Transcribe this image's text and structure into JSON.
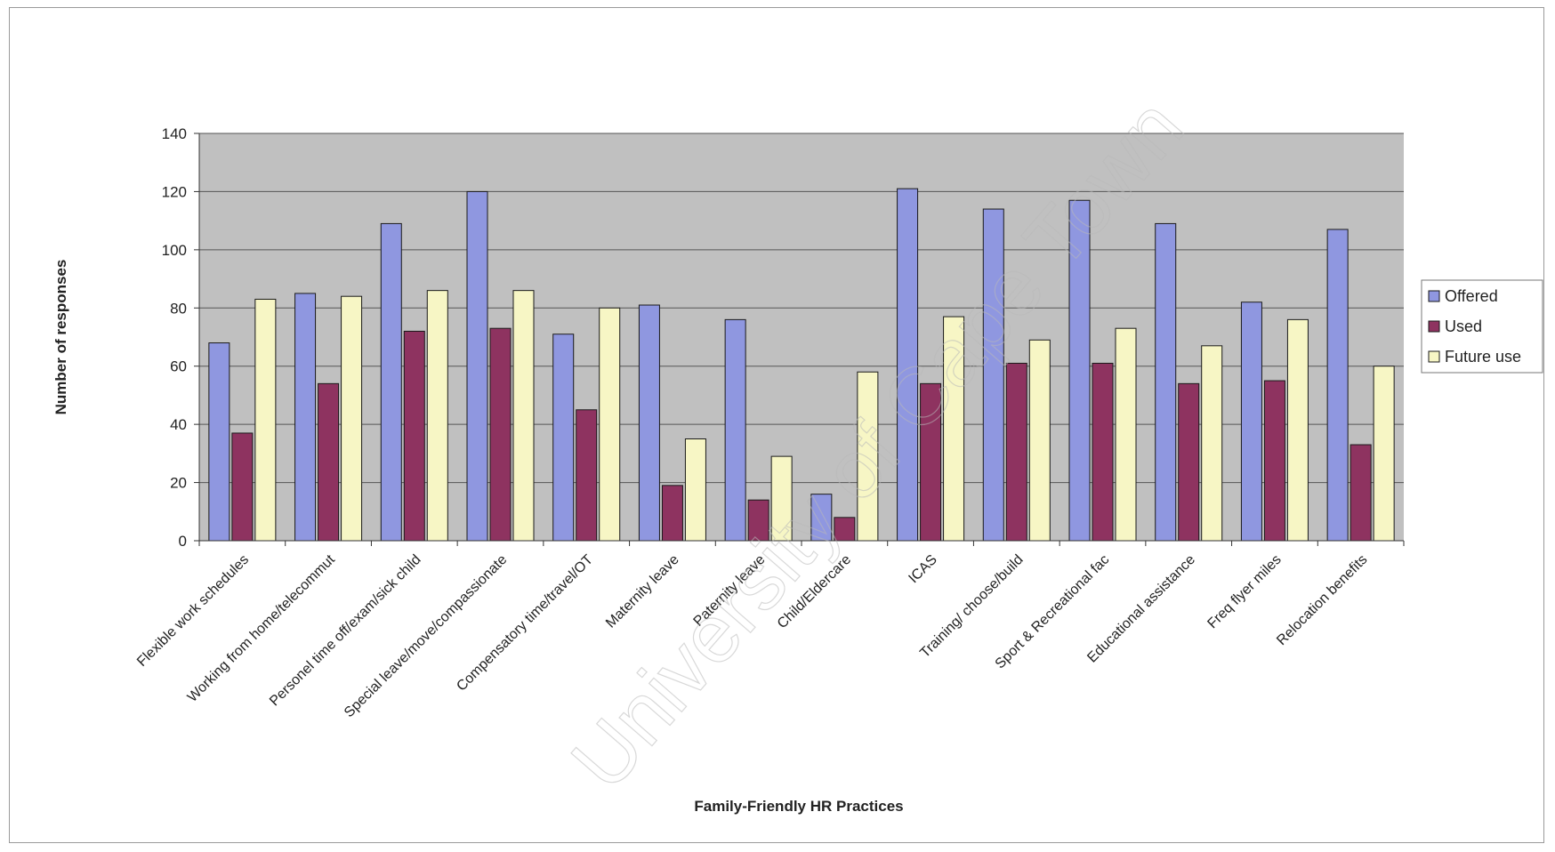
{
  "chart_data": {
    "type": "bar",
    "xlabel": "Family-Friendly HR Practices",
    "ylabel": "Number of responses",
    "ylim": [
      0,
      140
    ],
    "yticks": [
      0,
      20,
      40,
      60,
      80,
      100,
      120,
      140
    ],
    "grid": true,
    "legend": "right",
    "categories": [
      "Flexible work schedules",
      "Working from home/telecommut",
      "Personel time off/exam/sick child",
      "Special leave/move/compassionate",
      "Compensatory time/travel/OT",
      "Maternity leave",
      "Paternity leave",
      "Child/Eldercare",
      "ICAS",
      "Training/ choose/build",
      "Sport & Recreational fac",
      "Educational assistance",
      "Freq flyer miles",
      "Relocation benefits"
    ],
    "series": [
      {
        "name": "Offered",
        "color": "#8f97e0",
        "values": [
          68,
          85,
          109,
          120,
          71,
          81,
          76,
          16,
          121,
          114,
          117,
          109,
          82,
          107
        ]
      },
      {
        "name": "Used",
        "color": "#8e3360",
        "values": [
          37,
          54,
          72,
          73,
          45,
          19,
          14,
          8,
          54,
          61,
          61,
          54,
          55,
          33
        ]
      },
      {
        "name": "Future use",
        "color": "#f7f6c5",
        "values": [
          83,
          84,
          86,
          86,
          80,
          35,
          29,
          58,
          77,
          69,
          73,
          67,
          76,
          60
        ]
      }
    ],
    "plot_background": "#c0c0c0"
  },
  "watermark": "University of Cape Town"
}
